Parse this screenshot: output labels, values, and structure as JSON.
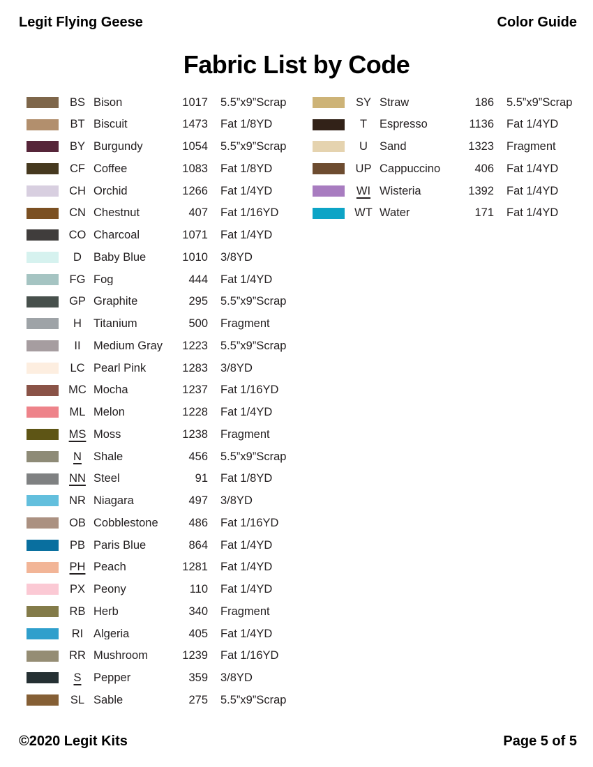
{
  "header": {
    "left": "Legit Flying Geese",
    "right": "Color Guide"
  },
  "title": "Fabric List by Code",
  "footer": {
    "left": "©2020 Legit Kits",
    "right": "Page 5 of 5"
  },
  "columns": {
    "left": [
      {
        "code": "BS",
        "name": "Bison",
        "number": "1017",
        "size": "5.5”x9”Scrap",
        "color": "#7e664a",
        "underline": false
      },
      {
        "code": "BT",
        "name": "Biscuit",
        "number": "1473",
        "size": "Fat 1/8YD",
        "color": "#b28f6d",
        "underline": false
      },
      {
        "code": "BY",
        "name": "Burgundy",
        "number": "1054",
        "size": "5.5”x9”Scrap",
        "color": "#562539",
        "underline": false
      },
      {
        "code": "CF",
        "name": "Coffee",
        "number": "1083",
        "size": "Fat 1/8YD",
        "color": "#46391f",
        "underline": false
      },
      {
        "code": "CH",
        "name": "Orchid",
        "number": "1266",
        "size": "Fat 1/4YD",
        "color": "#d8cfe0",
        "underline": false
      },
      {
        "code": "CN",
        "name": "Chestnut",
        "number": "407",
        "size": "Fat 1/16YD",
        "color": "#7b5022",
        "underline": false
      },
      {
        "code": "CO",
        "name": "Charcoal",
        "number": "1071",
        "size": "Fat 1/4YD",
        "color": "#403d3c",
        "underline": false
      },
      {
        "code": "D",
        "name": "Baby Blue",
        "number": "1010",
        "size": "3/8YD",
        "color": "#d6f2ef",
        "underline": false
      },
      {
        "code": "FG",
        "name": "Fog",
        "number": "444",
        "size": "Fat 1/4YD",
        "color": "#a5c4c2",
        "underline": false
      },
      {
        "code": "GP",
        "name": "Graphite",
        "number": "295",
        "size": "5.5”x9”Scrap",
        "color": "#47504c",
        "underline": false
      },
      {
        "code": "H",
        "name": "Titanium",
        "number": "500",
        "size": "Fragment",
        "color": "#9ea3a7",
        "underline": false
      },
      {
        "code": "II",
        "name": "Medium Gray",
        "number": "1223",
        "size": "5.5”x9”Scrap",
        "color": "#a69da0",
        "underline": false
      },
      {
        "code": "LC",
        "name": "Pearl Pink",
        "number": "1283",
        "size": "3/8YD",
        "color": "#fdeee0",
        "underline": false
      },
      {
        "code": "MC",
        "name": "Mocha",
        "number": "1237",
        "size": "Fat 1/16YD",
        "color": "#8a5347",
        "underline": false
      },
      {
        "code": "ML",
        "name": "Melon",
        "number": "1228",
        "size": "Fat 1/4YD",
        "color": "#ee838a",
        "underline": false
      },
      {
        "code": "MS",
        "name": "Moss",
        "number": "1238",
        "size": "Fragment",
        "color": "#5e5515",
        "underline": true
      },
      {
        "code": "N",
        "name": "Shale",
        "number": "456",
        "size": "5.5”x9”Scrap",
        "color": "#8e8b77",
        "underline": true
      },
      {
        "code": "NN",
        "name": "Steel",
        "number": "91",
        "size": "Fat 1/8YD",
        "color": "#7f8182",
        "underline": true
      },
      {
        "code": "NR",
        "name": "Niagara",
        "number": "497",
        "size": "3/8YD",
        "color": "#63bfdd",
        "underline": false
      },
      {
        "code": "OB",
        "name": "Cobblestone",
        "number": "486",
        "size": "Fat 1/16YD",
        "color": "#ab9181",
        "underline": false
      },
      {
        "code": "PB",
        "name": "Paris Blue",
        "number": "864",
        "size": "Fat 1/4YD",
        "color": "#096f9f",
        "underline": false
      },
      {
        "code": "PH",
        "name": "Peach",
        "number": "1281",
        "size": "Fat 1/4YD",
        "color": "#f2b597",
        "underline": true
      },
      {
        "code": "PX",
        "name": "Peony",
        "number": "110",
        "size": "Fat 1/4YD",
        "color": "#fbc9d4",
        "underline": false
      },
      {
        "code": "RB",
        "name": "Herb",
        "number": "340",
        "size": "Fragment",
        "color": "#837b49",
        "underline": false
      },
      {
        "code": "RI",
        "name": "Algeria",
        "number": "405",
        "size": "Fat 1/4YD",
        "color": "#2f9fcc",
        "underline": false
      },
      {
        "code": "RR",
        "name": "Mushroom",
        "number": "1239",
        "size": "Fat 1/16YD",
        "color": "#958d74",
        "underline": false
      },
      {
        "code": "S",
        "name": "Pepper",
        "number": "359",
        "size": "3/8YD",
        "color": "#253033",
        "underline": true
      },
      {
        "code": "SL",
        "name": "Sable",
        "number": "275",
        "size": "5.5”x9”Scrap",
        "color": "#855f35",
        "underline": false
      }
    ],
    "right": [
      {
        "code": "SY",
        "name": "Straw",
        "number": "186",
        "size": "5.5”x9”Scrap",
        "color": "#cdb377",
        "underline": false
      },
      {
        "code": "T",
        "name": "Espresso",
        "number": "1136",
        "size": "Fat 1/4YD",
        "color": "#322218",
        "underline": false
      },
      {
        "code": "U",
        "name": "Sand",
        "number": "1323",
        "size": "Fragment",
        "color": "#e5d3af",
        "underline": false
      },
      {
        "code": "UP",
        "name": "Cappuccino",
        "number": "406",
        "size": "Fat 1/4YD",
        "color": "#6d4c30",
        "underline": false
      },
      {
        "code": "WI",
        "name": "Wisteria",
        "number": "1392",
        "size": "Fat 1/4YD",
        "color": "#a87cc0",
        "underline": true
      },
      {
        "code": "WT",
        "name": "Water",
        "number": "171",
        "size": "Fat 1/4YD",
        "color": "#0da4c6",
        "underline": false
      }
    ]
  }
}
